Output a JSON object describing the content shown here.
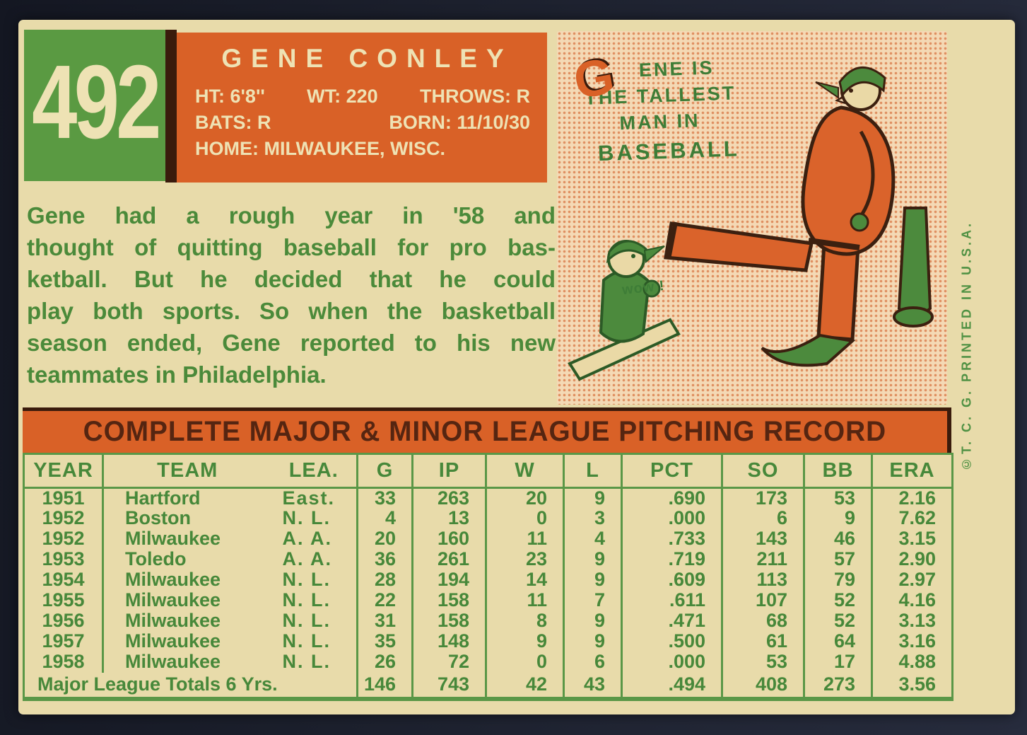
{
  "card": {
    "number": "492",
    "name": "GENE CONLEY",
    "vitals_line1": [
      "HT: 6'8''",
      "WT: 220",
      "THROWS: R"
    ],
    "vitals_line2": [
      "BATS: R",
      "BORN: 11/10/30"
    ],
    "vitals_line3": "HOME: MILWAUKEE, WISC.",
    "bio_lines": [
      "Gene had a rough year in '58 and",
      "thought of quitting baseball for pro bas-",
      "ketball. But he decided that he could",
      "play both sports. So when the basketball",
      "season ended, Gene reported to his new",
      "teammates in Philadelphia."
    ],
    "bio_full": "Gene had a rough year in '58 and thought of quitting baseball for pro basketball. But he decided that he could play both sports. So when the basketball season ended, Gene reported to his new teammates in Philadelphia.",
    "cartoon": {
      "initial": "G",
      "line1_rest": "ENE IS",
      "line2": "THE TALLEST",
      "line3": "MAN IN",
      "line4": "BASEBALL",
      "speech": "wow !"
    },
    "copyright": "©T. C. G. PRINTED IN U.S.A.",
    "record": {
      "title": "COMPLETE MAJOR & MINOR LEAGUE PITCHING RECORD",
      "columns": [
        "YEAR",
        "TEAM",
        "LEA.",
        "G",
        "IP",
        "W",
        "L",
        "PCT",
        "SO",
        "BB",
        "ERA"
      ],
      "rows": [
        [
          "1951",
          "Hartford",
          "East.",
          "33",
          "263",
          "20",
          "9",
          ".690",
          "173",
          "53",
          "2.16"
        ],
        [
          "1952",
          "Boston",
          "N. L.",
          "4",
          "13",
          "0",
          "3",
          ".000",
          "6",
          "9",
          "7.62"
        ],
        [
          "1952",
          "Milwaukee",
          "A. A.",
          "20",
          "160",
          "11",
          "4",
          ".733",
          "143",
          "46",
          "3.15"
        ],
        [
          "1953",
          "Toledo",
          "A. A.",
          "36",
          "261",
          "23",
          "9",
          ".719",
          "211",
          "57",
          "2.90"
        ],
        [
          "1954",
          "Milwaukee",
          "N. L.",
          "28",
          "194",
          "14",
          "9",
          ".609",
          "113",
          "79",
          "2.97"
        ],
        [
          "1955",
          "Milwaukee",
          "N. L.",
          "22",
          "158",
          "11",
          "7",
          ".611",
          "107",
          "52",
          "4.16"
        ],
        [
          "1956",
          "Milwaukee",
          "N. L.",
          "31",
          "158",
          "8",
          "9",
          ".471",
          "68",
          "52",
          "3.13"
        ],
        [
          "1957",
          "Milwaukee",
          "N. L.",
          "35",
          "148",
          "9",
          "9",
          ".500",
          "61",
          "64",
          "3.16"
        ],
        [
          "1958",
          "Milwaukee",
          "N. L.",
          "26",
          "72",
          "0",
          "6",
          ".000",
          "53",
          "17",
          "4.88"
        ]
      ],
      "totals": {
        "label": "Major League Totals 6 Yrs.",
        "values": [
          "146",
          "743",
          "42",
          "43",
          ".494",
          "408",
          "273",
          "3.56"
        ]
      }
    },
    "colors": {
      "accent_orange": "#d96127",
      "accent_green": "#5a9a42",
      "text_green": "#47883a",
      "title_brown": "#552511",
      "card_cream": "#e8dbaa",
      "background_navy": "#1b1f2b"
    }
  }
}
